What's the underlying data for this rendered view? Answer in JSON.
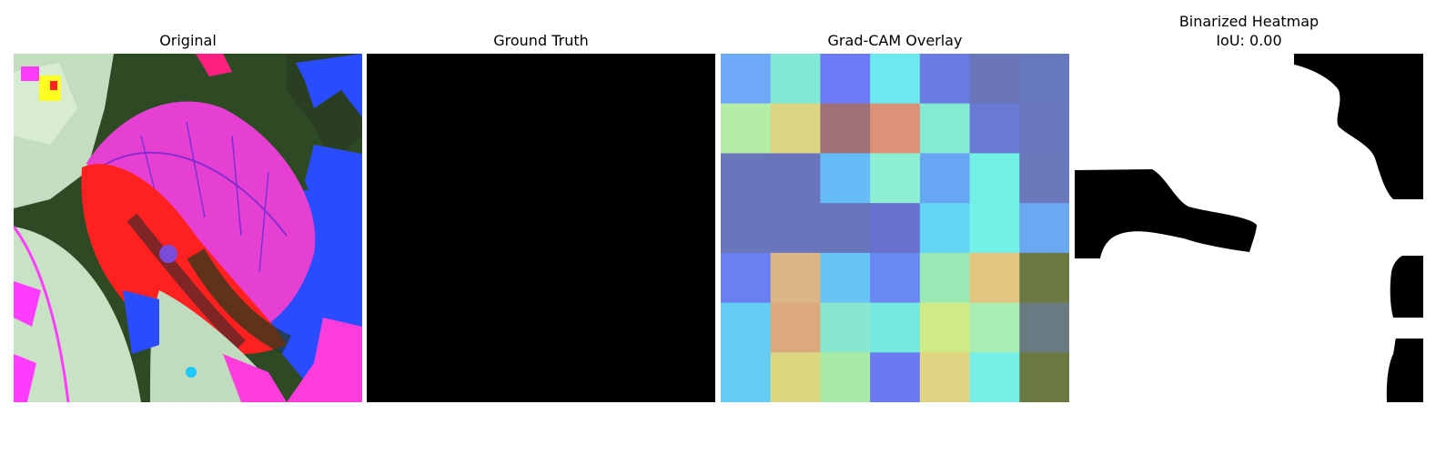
{
  "panels": {
    "original": {
      "title": "Original"
    },
    "ground_truth": {
      "title": "Ground Truth"
    },
    "gradcam": {
      "title": "Grad-CAM Overlay",
      "grid": [
        [
          "#6ea8f6",
          "#83e8d6",
          "#6c7af6",
          "#6ce8ee",
          "#6a7ce2",
          "#6a76b8",
          "#6878bc"
        ],
        [
          "#b4eea6",
          "#dcd682",
          "#a07078",
          "#dc9278",
          "#84ead2",
          "#6a7ad2",
          "#6a78c0"
        ],
        [
          "#6a76bc",
          "#6a76bc",
          "#66bcf6",
          "#8ef0d2",
          "#66a6f2",
          "#72f0e6",
          "#6a78bc"
        ],
        [
          "#6a76bc",
          "#6a76bc",
          "#6a76bc",
          "#6a72d0",
          "#62d4f4",
          "#72f2e6",
          "#6aa8f2"
        ],
        [
          "#6a80f2",
          "#dcb686",
          "#66c4f6",
          "#6a88f2",
          "#9aeab6",
          "#e2c682",
          "#6a7a42"
        ],
        [
          "#62ccf2",
          "#dca87c",
          "#8ae6ce",
          "#72e8de",
          "#d0ea86",
          "#aaeeb4",
          "#6a7a82"
        ],
        [
          "#66ccf4",
          "#dcd882",
          "#a8eaa8",
          "#6a7af2",
          "#e0d482",
          "#76f0e6",
          "#6a7a42"
        ]
      ]
    },
    "binarized": {
      "title_line1": "Binarized Heatmap",
      "title_line2": "IoU: 0.00"
    }
  }
}
